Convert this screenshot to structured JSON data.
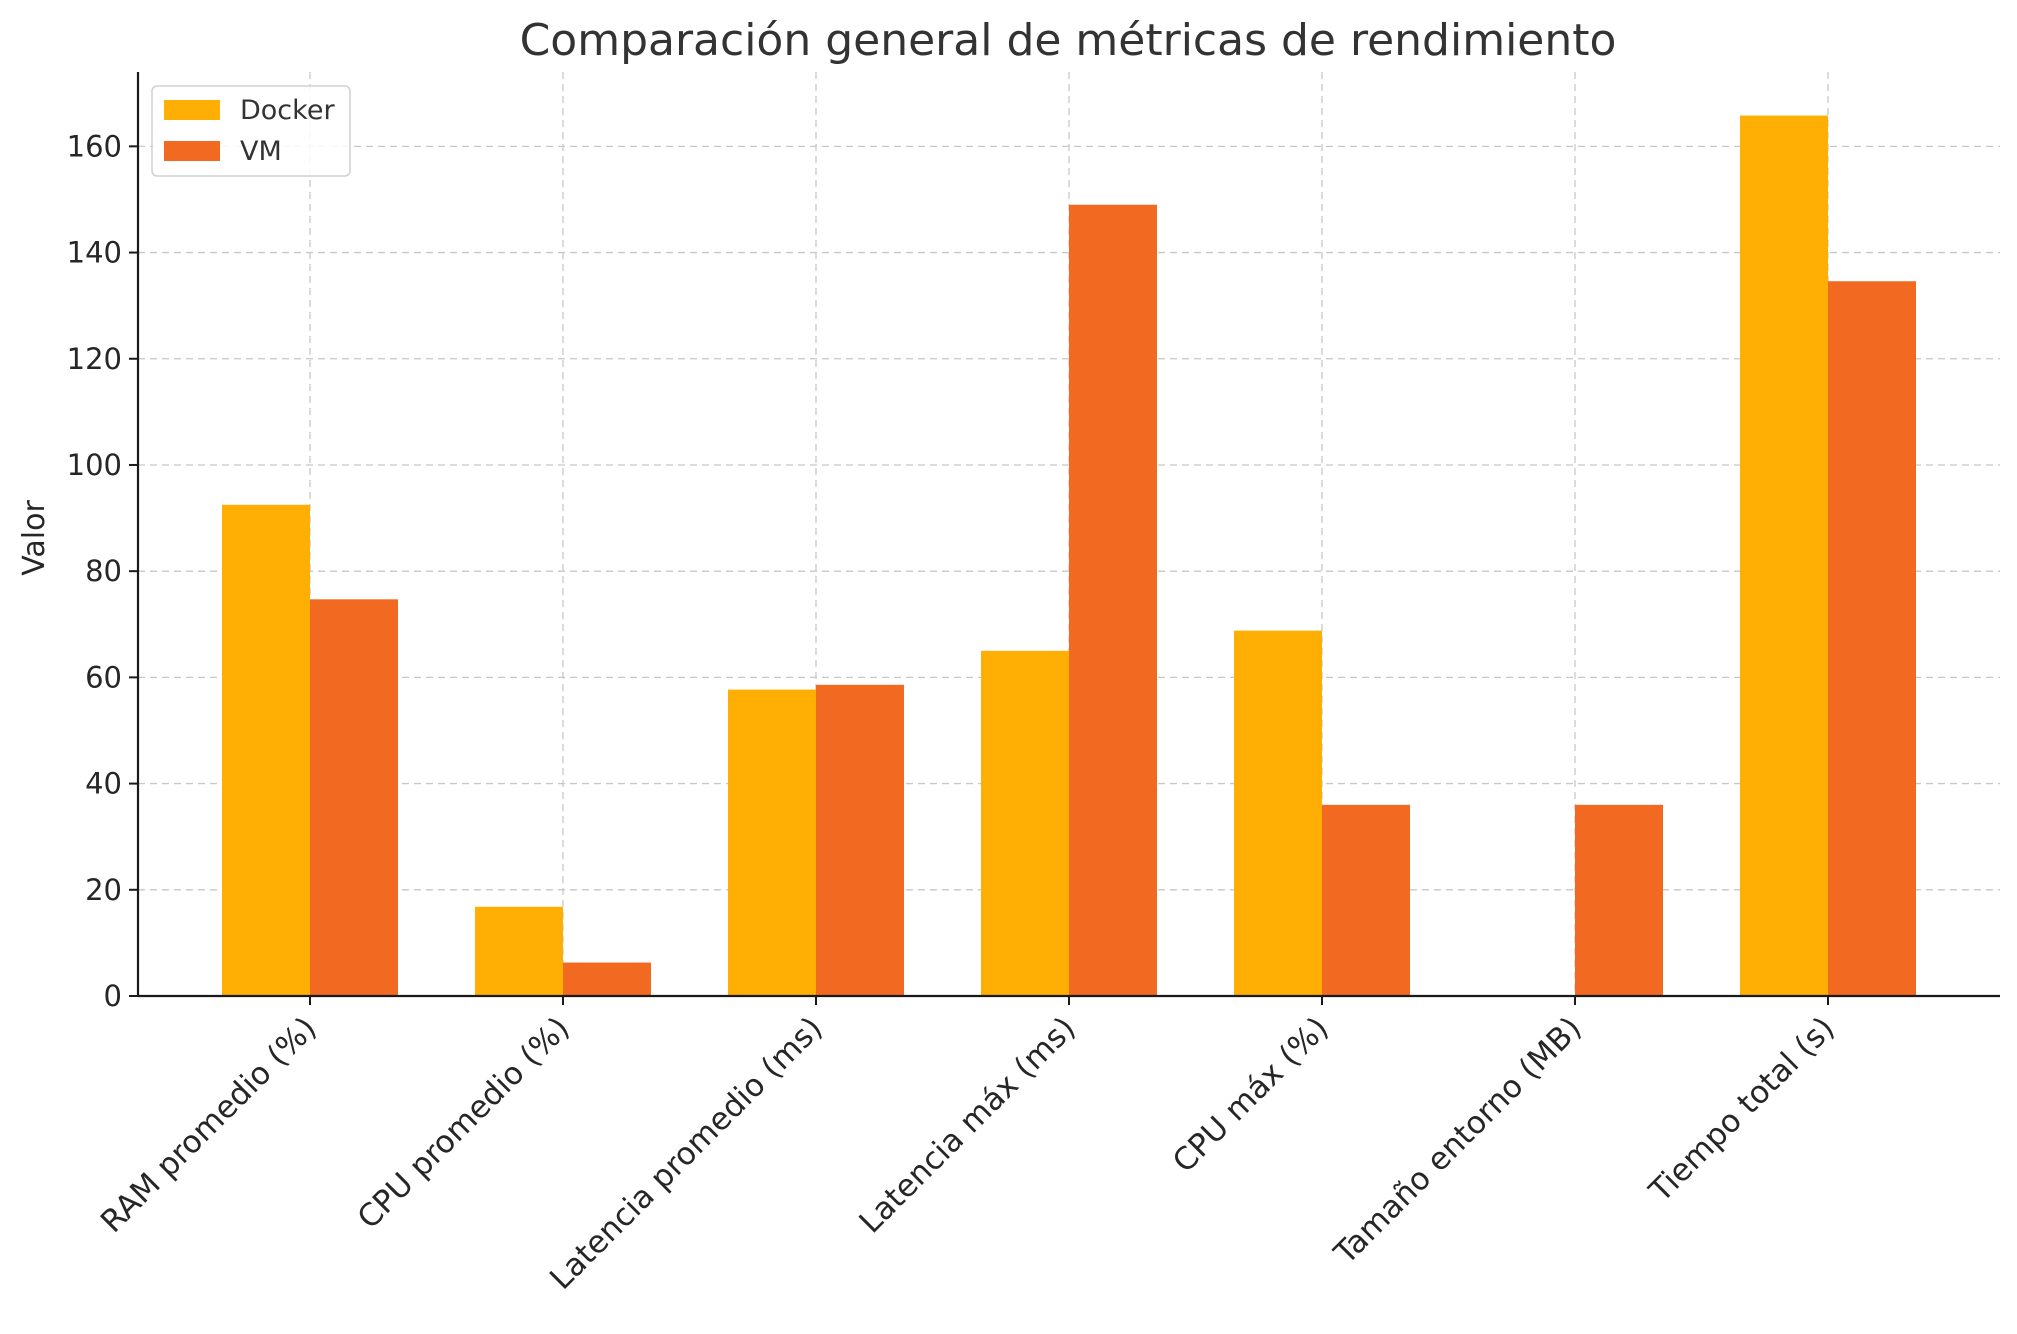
{
  "chart_data": {
    "type": "bar",
    "title": "Comparación general de métricas de rendimiento",
    "xlabel": "",
    "ylabel": "Valor",
    "ylim": [
      0,
      174
    ],
    "yticks": [
      0,
      20,
      40,
      60,
      80,
      100,
      120,
      140,
      160
    ],
    "categories": [
      "RAM promedio (%)",
      "CPU promedio (%)",
      "Latencia promedio (ms)",
      "Latencia máx (ms)",
      "CPU máx (%)",
      "Tamaño entorno (MB)",
      "Tiempo total (s)"
    ],
    "series": [
      {
        "name": "Docker",
        "color": "#FFAE03",
        "values": [
          92.5,
          16.8,
          57.7,
          65.0,
          68.8,
          0,
          165.8
        ]
      },
      {
        "name": "VM",
        "color": "#F26A22",
        "values": [
          74.7,
          6.3,
          58.6,
          149.0,
          36.0,
          36.0,
          134.6
        ]
      }
    ],
    "grid": true,
    "legend_position": "top-left"
  }
}
